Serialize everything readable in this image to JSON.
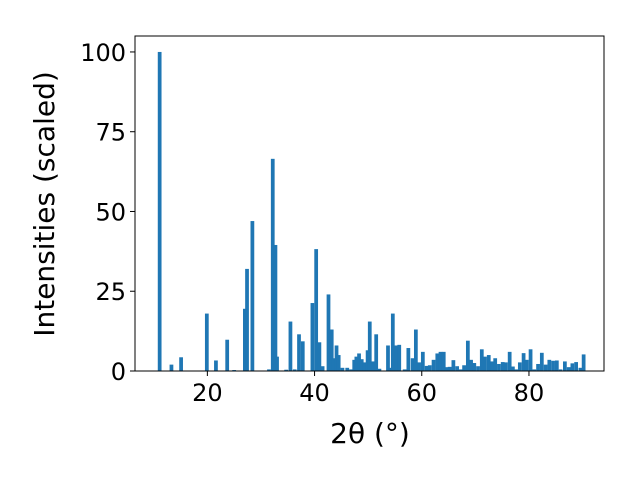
{
  "chart_data": {
    "type": "bar",
    "title": "",
    "xlabel": "2θ (°)",
    "ylabel": "Intensities (scaled)",
    "xlim": [
      6.5,
      94
    ],
    "ylim": [
      0,
      105
    ],
    "xticks": [
      20,
      40,
      60,
      80
    ],
    "yticks": [
      0,
      25,
      50,
      75,
      100
    ],
    "grid": false,
    "legend": "none",
    "bar_width": 0.7,
    "series": [
      {
        "color": "#1f77b4",
        "x": [
          11.1,
          13.3,
          15.1,
          19.9,
          21.6,
          23.7,
          25.0,
          27.0,
          27.4,
          28.4,
          31.5,
          32.2,
          32.7,
          33.0,
          34.7,
          35.5,
          36.3,
          37.1,
          37.8,
          39.6,
          40.3,
          40.9,
          41.5,
          42.6,
          43.2,
          43.6,
          44.1,
          44.5,
          45.2,
          46.1,
          46.8,
          47.4,
          47.8,
          48.3,
          48.8,
          49.3,
          49.9,
          50.3,
          50.9,
          51.5,
          52.1,
          53.7,
          54.2,
          54.6,
          55.2,
          55.8,
          56.8,
          57.5,
          58.3,
          58.9,
          59.5,
          60.2,
          60.9,
          61.5,
          62.2,
          62.9,
          63.5,
          64.1,
          64.6,
          65.2,
          65.9,
          66.6,
          67.3,
          67.9,
          68.6,
          69.2,
          69.8,
          70.5,
          71.2,
          71.8,
          72.5,
          73.1,
          73.7,
          74.4,
          75.1,
          75.7,
          76.4,
          77.0,
          77.6,
          78.3,
          79.0,
          79.6,
          80.3,
          81.0,
          81.7,
          82.4,
          83.1,
          83.8,
          84.5,
          85.2,
          85.9,
          86.7,
          87.4,
          88.1,
          88.8,
          89.6,
          90.2
        ],
        "values": [
          100,
          2,
          4.3,
          18,
          3.3,
          9.8,
          0.3,
          19.5,
          32,
          47,
          0.5,
          66.5,
          39.5,
          4.5,
          0.4,
          15.5,
          0.5,
          11.5,
          9.3,
          21.3,
          38.2,
          9,
          1.5,
          24,
          13,
          4,
          8,
          5,
          1,
          1,
          0.5,
          3.5,
          4.5,
          5.5,
          3.7,
          2.7,
          6.5,
          15.5,
          3,
          11.5,
          0.7,
          8,
          1,
          18,
          8,
          8.2,
          0.5,
          7.2,
          4,
          13,
          2.7,
          6,
          1.6,
          1.8,
          3.5,
          5.5,
          6,
          6,
          1.2,
          1.3,
          3.4,
          1.5,
          0.5,
          1.8,
          9.5,
          3.5,
          2.5,
          1.5,
          6.8,
          4.5,
          5,
          3,
          4,
          2.2,
          2.8,
          2.7,
          6,
          1.4,
          0.5,
          2.7,
          5.6,
          3.5,
          6.8,
          0.5,
          2.2,
          5.7,
          2,
          3.5,
          3.2,
          3.3,
          0.5,
          3,
          1.2,
          2.4,
          2.8,
          1,
          5.2
        ]
      }
    ]
  }
}
